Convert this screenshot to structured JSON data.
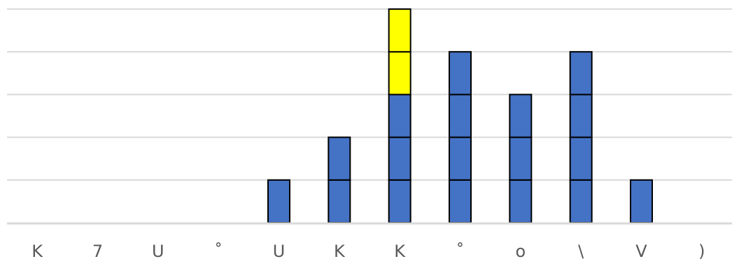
{
  "chart_data": {
    "type": "bar",
    "stacked": true,
    "categories": [
      "K",
      "7",
      "U",
      "˚",
      "U",
      "K",
      "K",
      "˚",
      "o",
      "\\",
      "V",
      ")"
    ],
    "series": [
      {
        "values": [
          0,
          0,
          0,
          0,
          1,
          2,
          3,
          4,
          3,
          4,
          1,
          0
        ],
        "color": "#4472c4"
      },
      {
        "values": [
          0,
          0,
          0,
          0,
          0,
          0,
          2,
          0,
          0,
          0,
          0,
          0
        ],
        "color": "#ffff00"
      }
    ],
    "ylim": [
      0,
      5
    ],
    "grid": true,
    "legend": "none"
  }
}
